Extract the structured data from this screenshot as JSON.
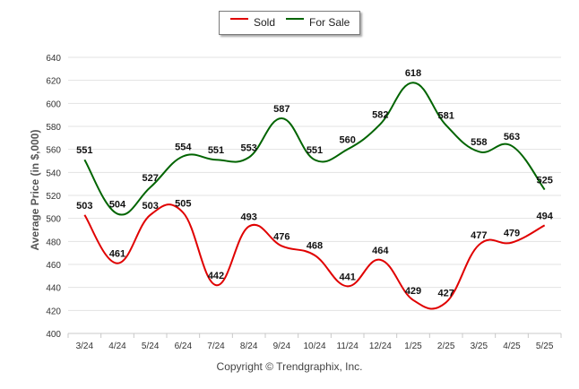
{
  "legend": {
    "sold_label": "Sold",
    "forsale_label": "For Sale"
  },
  "footer": {
    "copyright": "Copyright © Trendgraphix, Inc."
  },
  "chart_data": {
    "type": "line",
    "categories": [
      "3/24",
      "4/24",
      "5/24",
      "6/24",
      "7/24",
      "8/24",
      "9/24",
      "10/24",
      "11/24",
      "12/24",
      "1/25",
      "2/25",
      "3/25",
      "4/25",
      "5/25"
    ],
    "series": [
      {
        "name": "Sold",
        "color": "#e00000",
        "values": [
          503,
          461,
          503,
          505,
          442,
          493,
          476,
          468,
          441,
          464,
          429,
          427,
          477,
          479,
          494
        ]
      },
      {
        "name": "For Sale",
        "color": "#006400",
        "values": [
          551,
          504,
          527,
          554,
          551,
          553,
          587,
          551,
          560,
          582,
          618,
          581,
          558,
          563,
          525
        ]
      }
    ],
    "ylabel": "Average Price (in $,000)",
    "ylim": [
      400,
      640
    ],
    "yticks": [
      400,
      420,
      440,
      460,
      480,
      500,
      520,
      540,
      560,
      580,
      600,
      620,
      640
    ],
    "grid": true,
    "legend_position": "top-center"
  }
}
